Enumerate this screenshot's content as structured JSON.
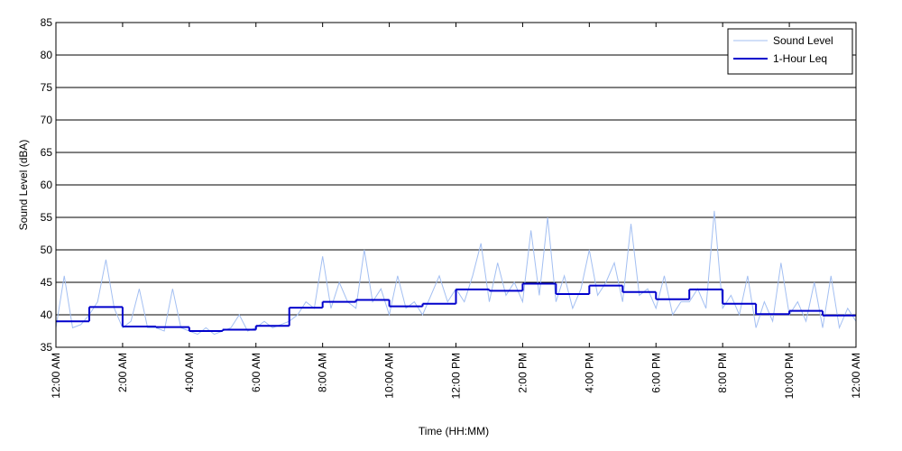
{
  "chart_data": {
    "type": "line",
    "xlabel": "Time (HH:MM)",
    "ylabel": "Sound Level (dBA)",
    "xlim": [
      0,
      24
    ],
    "ylim": [
      35,
      85
    ],
    "xticks": [
      {
        "value": 0,
        "label": "12:00 AM"
      },
      {
        "value": 2,
        "label": "2:00 AM"
      },
      {
        "value": 4,
        "label": "4:00 AM"
      },
      {
        "value": 6,
        "label": "6:00 AM"
      },
      {
        "value": 8,
        "label": "8:00 AM"
      },
      {
        "value": 10,
        "label": "10:00 AM"
      },
      {
        "value": 12,
        "label": "12:00 PM"
      },
      {
        "value": 14,
        "label": "2:00 PM"
      },
      {
        "value": 16,
        "label": "4:00 PM"
      },
      {
        "value": 18,
        "label": "6:00 PM"
      },
      {
        "value": 20,
        "label": "8:00 PM"
      },
      {
        "value": 22,
        "label": "10:00 PM"
      },
      {
        "value": 24,
        "label": "12:00 AM"
      }
    ],
    "yticks": [
      35,
      40,
      45,
      50,
      55,
      60,
      65,
      70,
      75,
      80,
      85
    ],
    "grid": true,
    "legend": "upper right",
    "series": [
      {
        "name": "Sound Level",
        "color": "#a3bff2",
        "drawstyle": "default",
        "x": [
          0,
          0.25,
          0.5,
          0.75,
          1,
          1.25,
          1.5,
          1.75,
          2,
          2.25,
          2.5,
          2.75,
          3,
          3.25,
          3.5,
          3.75,
          4,
          4.25,
          4.5,
          4.75,
          5,
          5.25,
          5.5,
          5.75,
          6,
          6.25,
          6.5,
          6.75,
          7,
          7.25,
          7.5,
          7.75,
          8,
          8.25,
          8.5,
          8.75,
          9,
          9.25,
          9.5,
          9.75,
          10,
          10.25,
          10.5,
          10.75,
          11,
          11.25,
          11.5,
          11.75,
          12,
          12.25,
          12.5,
          12.75,
          13,
          13.25,
          13.5,
          13.75,
          14,
          14.25,
          14.5,
          14.75,
          15,
          15.25,
          15.5,
          15.75,
          16,
          16.25,
          16.5,
          16.75,
          17,
          17.25,
          17.5,
          17.75,
          18,
          18.25,
          18.5,
          18.75,
          19,
          19.25,
          19.5,
          19.75,
          20,
          20.25,
          20.5,
          20.75,
          21,
          21.25,
          21.5,
          21.75,
          22,
          22.25,
          22.5,
          22.75,
          23,
          23.25,
          23.5,
          23.75,
          24
        ],
        "values": [
          38,
          46,
          38,
          38.5,
          40,
          42,
          48.5,
          41,
          38,
          39,
          44,
          38,
          38,
          37.5,
          44,
          38,
          37.5,
          37,
          38,
          37,
          37.5,
          38,
          40,
          37.5,
          38,
          39,
          38,
          38.5,
          39,
          40,
          42,
          41,
          49,
          41,
          45,
          42,
          41,
          50,
          42,
          44,
          40,
          46,
          41,
          42,
          40,
          43,
          46,
          42,
          44,
          42,
          46,
          51,
          42,
          48,
          43,
          45,
          42,
          53,
          43,
          55,
          42,
          46,
          41,
          44,
          50,
          43,
          45,
          48,
          42,
          54,
          43,
          44,
          41,
          46,
          40,
          42,
          42,
          44,
          41,
          56,
          41,
          43,
          40,
          46,
          38,
          42,
          39,
          48,
          40,
          42,
          39,
          45,
          38,
          46,
          38,
          41,
          39
        ]
      },
      {
        "name": "1-Hour Leq",
        "color": "#0000cc",
        "drawstyle": "steps-post",
        "x": [
          0,
          1,
          2,
          3,
          4,
          5,
          6,
          7,
          8,
          9,
          10,
          11,
          12,
          13,
          14,
          15,
          16,
          17,
          18,
          19,
          20,
          21,
          22,
          23
        ],
        "values": [
          39,
          41.2,
          38.2,
          38.1,
          37.5,
          37.7,
          38.3,
          41.1,
          42,
          42.3,
          41.3,
          41.7,
          43.9,
          43.7,
          44.8,
          43.2,
          44.5,
          43.5,
          42.4,
          43.9,
          41.7,
          40.1,
          40.6,
          39.9
        ]
      }
    ]
  }
}
